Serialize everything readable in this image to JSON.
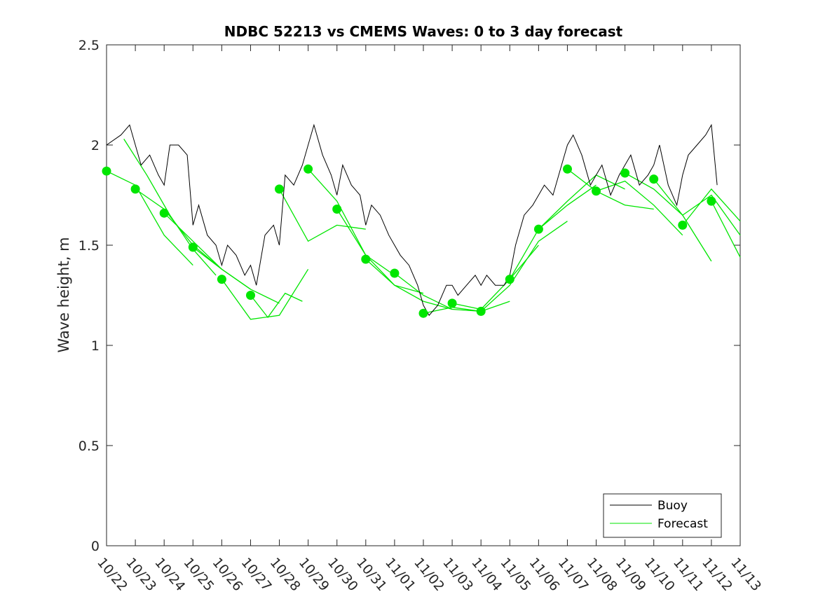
{
  "chart_data": {
    "type": "line",
    "title": "NDBC 52213 vs CMEMS Waves: 0 to 3 day forecast",
    "xlabel": "",
    "ylabel": "Wave height, m",
    "x_tick_labels": [
      "10/22",
      "10/23",
      "10/24",
      "10/25",
      "10/26",
      "10/27",
      "10/28",
      "10/29",
      "10/30",
      "10/31",
      "11/01",
      "11/02",
      "11/03",
      "11/04",
      "11/05",
      "11/06",
      "11/07",
      "11/08",
      "11/09",
      "11/10",
      "11/11",
      "11/12",
      "11/13"
    ],
    "y_ticks": [
      0,
      0.5,
      1,
      1.5,
      2,
      2.5
    ],
    "y_tick_labels": [
      "0",
      "0.5",
      "1",
      "1.5",
      "2",
      "2.5"
    ],
    "ylim": [
      0,
      2.5
    ],
    "xlim_days": [
      0,
      22
    ],
    "grid": false,
    "legend": {
      "position": "bottom-right",
      "entries": [
        "Buoy",
        "Forecast"
      ]
    },
    "colors": {
      "buoy": "#000000",
      "forecast": "#00e600"
    },
    "buoy_day": [
      0,
      0.5,
      0.8,
      1,
      1.2,
      1.5,
      1.8,
      2,
      2.2,
      2.5,
      2.8,
      3,
      3.2,
      3.5,
      3.8,
      4,
      4.2,
      4.5,
      4.8,
      5,
      5.2,
      5.5,
      5.8,
      6,
      6.2,
      6.5,
      6.8,
      7,
      7.2,
      7.5,
      7.8,
      8,
      8.2,
      8.5,
      8.8,
      9,
      9.2,
      9.5,
      9.8,
      10,
      10.2,
      10.5,
      10.8,
      11,
      11.2,
      11.5,
      11.8,
      12,
      12.2,
      12.5,
      12.8,
      13,
      13.2,
      13.5,
      13.8,
      14,
      14.2,
      14.5,
      14.8,
      15,
      15.2,
      15.5,
      15.8,
      16,
      16.2,
      16.5,
      16.8,
      17,
      17.2,
      17.5,
      17.8,
      18,
      18.2,
      18.5,
      18.8,
      19,
      19.2,
      19.5,
      19.8,
      20,
      20.2,
      20.5,
      20.8,
      21,
      21.2
    ],
    "buoy_height": [
      2.0,
      2.05,
      2.1,
      2.0,
      1.9,
      1.95,
      1.85,
      1.8,
      2.0,
      2.0,
      1.95,
      1.6,
      1.7,
      1.55,
      1.5,
      1.4,
      1.5,
      1.45,
      1.35,
      1.4,
      1.3,
      1.55,
      1.6,
      1.5,
      1.85,
      1.8,
      1.9,
      2.0,
      2.1,
      1.95,
      1.85,
      1.75,
      1.9,
      1.8,
      1.75,
      1.6,
      1.7,
      1.65,
      1.55,
      1.5,
      1.45,
      1.4,
      1.3,
      1.2,
      1.15,
      1.2,
      1.3,
      1.3,
      1.25,
      1.3,
      1.35,
      1.3,
      1.35,
      1.3,
      1.3,
      1.35,
      1.5,
      1.65,
      1.7,
      1.75,
      1.8,
      1.75,
      1.9,
      2.0,
      2.05,
      1.95,
      1.8,
      1.85,
      1.9,
      1.75,
      1.85,
      1.9,
      1.95,
      1.8,
      1.85,
      1.9,
      2.0,
      1.8,
      1.7,
      1.85,
      1.95,
      2.0,
      2.05,
      2.1,
      1.8
    ],
    "forecast_runs": [
      {
        "start_day": 0,
        "end_day": 3,
        "values": [
          1.87,
          1.8,
          1.55,
          1.4
        ]
      },
      {
        "start_day": 0.6,
        "end_day": 3.8,
        "values": [
          2.03,
          1.85,
          1.65,
          1.48,
          1.35
        ]
      },
      {
        "start_day": 1,
        "end_day": 4,
        "values": [
          1.78,
          1.68,
          1.5,
          1.38
        ]
      },
      {
        "start_day": 2,
        "end_day": 5,
        "values": [
          1.66,
          1.52,
          1.38,
          1.28
        ]
      },
      {
        "start_day": 3,
        "end_day": 6,
        "values": [
          1.49,
          1.38,
          1.28,
          1.21
        ]
      },
      {
        "start_day": 4,
        "end_day": 7,
        "values": [
          1.33,
          1.13,
          1.15,
          1.38
        ]
      },
      {
        "start_day": 5,
        "end_day": 6.8,
        "values": [
          1.25,
          1.14,
          1.26,
          1.22
        ]
      },
      {
        "start_day": 6,
        "end_day": 9,
        "values": [
          1.78,
          1.52,
          1.6,
          1.58
        ]
      },
      {
        "start_day": 7,
        "end_day": 10,
        "values": [
          1.88,
          1.72,
          1.45,
          1.35
        ]
      },
      {
        "start_day": 8,
        "end_day": 11,
        "values": [
          1.68,
          1.45,
          1.3,
          1.26
        ]
      },
      {
        "start_day": 9,
        "end_day": 12,
        "values": [
          1.43,
          1.3,
          1.22,
          1.18
        ]
      },
      {
        "start_day": 10,
        "end_day": 13,
        "values": [
          1.36,
          1.25,
          1.18,
          1.17
        ]
      },
      {
        "start_day": 11,
        "end_day": 14,
        "values": [
          1.16,
          1.19,
          1.17,
          1.22
        ]
      },
      {
        "start_day": 12,
        "end_day": 15,
        "values": [
          1.21,
          1.18,
          1.33,
          1.5
        ]
      },
      {
        "start_day": 13,
        "end_day": 16,
        "values": [
          1.17,
          1.3,
          1.52,
          1.62
        ]
      },
      {
        "start_day": 14,
        "end_day": 17,
        "values": [
          1.33,
          1.58,
          1.7,
          1.8
        ]
      },
      {
        "start_day": 15,
        "end_day": 18,
        "values": [
          1.58,
          1.72,
          1.85,
          1.78
        ]
      },
      {
        "start_day": 16,
        "end_day": 19,
        "values": [
          1.88,
          1.77,
          1.7,
          1.68
        ]
      },
      {
        "start_day": 17,
        "end_day": 20,
        "values": [
          1.77,
          1.82,
          1.7,
          1.55
        ]
      },
      {
        "start_day": 18,
        "end_day": 21,
        "values": [
          1.86,
          1.78,
          1.65,
          1.42
        ]
      },
      {
        "start_day": 19,
        "end_day": 22,
        "values": [
          1.83,
          1.65,
          1.75,
          1.55
        ]
      },
      {
        "start_day": 20,
        "end_day": 22,
        "values": [
          1.6,
          1.78,
          1.62
        ]
      },
      {
        "start_day": 21,
        "end_day": 22,
        "values": [
          1.72,
          1.44
        ]
      }
    ],
    "analysis_points": [
      {
        "day": 0,
        "value": 1.87
      },
      {
        "day": 1,
        "value": 1.78
      },
      {
        "day": 2,
        "value": 1.66
      },
      {
        "day": 3,
        "value": 1.49
      },
      {
        "day": 4,
        "value": 1.33
      },
      {
        "day": 5,
        "value": 1.25
      },
      {
        "day": 6,
        "value": 1.78
      },
      {
        "day": 7,
        "value": 1.88
      },
      {
        "day": 8,
        "value": 1.68
      },
      {
        "day": 9,
        "value": 1.43
      },
      {
        "day": 10,
        "value": 1.36
      },
      {
        "day": 11,
        "value": 1.16
      },
      {
        "day": 12,
        "value": 1.21
      },
      {
        "day": 13,
        "value": 1.17
      },
      {
        "day": 14,
        "value": 1.33
      },
      {
        "day": 15,
        "value": 1.58
      },
      {
        "day": 16,
        "value": 1.88
      },
      {
        "day": 17,
        "value": 1.77
      },
      {
        "day": 18,
        "value": 1.86
      },
      {
        "day": 19,
        "value": 1.83
      },
      {
        "day": 20,
        "value": 1.6
      },
      {
        "day": 21,
        "value": 1.72
      }
    ]
  }
}
